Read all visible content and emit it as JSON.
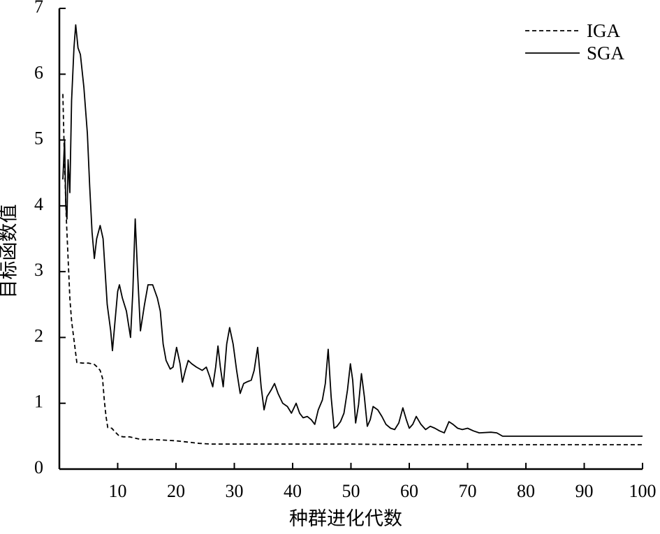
{
  "chart_data": {
    "type": "line",
    "title": "",
    "xlabel": "种群进化代数",
    "ylabel": "目标函数值",
    "xlim": [
      0,
      100
    ],
    "ylim": [
      0,
      7
    ],
    "x_ticks": [
      10,
      20,
      30,
      40,
      50,
      60,
      70,
      80,
      90,
      100
    ],
    "y_ticks": [
      0,
      1,
      2,
      3,
      4,
      5,
      6,
      7
    ],
    "grid": false,
    "legend": "top-right",
    "series": [
      {
        "name": "IGA",
        "style": "dashed",
        "color": "#000000",
        "points": [
          [
            0.6,
            5.7
          ],
          [
            0.9,
            4.6
          ],
          [
            1.2,
            3.8
          ],
          [
            1.5,
            3.2
          ],
          [
            1.8,
            2.6
          ],
          [
            2.1,
            2.25
          ],
          [
            2.6,
            1.9
          ],
          [
            3,
            1.62
          ],
          [
            4,
            1.61
          ],
          [
            5,
            1.61
          ],
          [
            6,
            1.59
          ],
          [
            6.5,
            1.55
          ],
          [
            7,
            1.5
          ],
          [
            7.4,
            1.38
          ],
          [
            7.7,
            1.05
          ],
          [
            8,
            0.8
          ],
          [
            8.3,
            0.63
          ],
          [
            9,
            0.62
          ],
          [
            9.5,
            0.57
          ],
          [
            10.3,
            0.5
          ],
          [
            11,
            0.49
          ],
          [
            12,
            0.49
          ],
          [
            13,
            0.47
          ],
          [
            14,
            0.45
          ],
          [
            16,
            0.45
          ],
          [
            18,
            0.44
          ],
          [
            20,
            0.43
          ],
          [
            22,
            0.41
          ],
          [
            24,
            0.39
          ],
          [
            26,
            0.38
          ],
          [
            30,
            0.38
          ],
          [
            40,
            0.38
          ],
          [
            50,
            0.38
          ],
          [
            60,
            0.37
          ],
          [
            70,
            0.37
          ],
          [
            80,
            0.37
          ],
          [
            90,
            0.37
          ],
          [
            100,
            0.37
          ]
        ]
      },
      {
        "name": "SGA",
        "style": "solid",
        "color": "#000000",
        "points": [
          [
            0.6,
            4.4
          ],
          [
            0.9,
            5.0
          ],
          [
            1.1,
            4.0
          ],
          [
            1.3,
            3.8
          ],
          [
            1.5,
            4.7
          ],
          [
            1.8,
            4.2
          ],
          [
            2.1,
            5.6
          ],
          [
            2.5,
            6.4
          ],
          [
            2.8,
            6.75
          ],
          [
            3.2,
            6.4
          ],
          [
            3.6,
            6.3
          ],
          [
            4.2,
            5.8
          ],
          [
            4.8,
            5.1
          ],
          [
            5.2,
            4.3
          ],
          [
            5.6,
            3.6
          ],
          [
            6,
            3.2
          ],
          [
            6.4,
            3.5
          ],
          [
            7,
            3.7
          ],
          [
            7.5,
            3.5
          ],
          [
            8.2,
            2.5
          ],
          [
            8.8,
            2.1
          ],
          [
            9.1,
            1.8
          ],
          [
            9.5,
            2.2
          ],
          [
            10,
            2.7
          ],
          [
            10.3,
            2.8
          ],
          [
            10.8,
            2.6
          ],
          [
            11.5,
            2.4
          ],
          [
            12.2,
            2.0
          ],
          [
            12.6,
            2.7
          ],
          [
            13,
            3.8
          ],
          [
            13.4,
            3.0
          ],
          [
            13.9,
            2.1
          ],
          [
            14.6,
            2.5
          ],
          [
            15.2,
            2.8
          ],
          [
            16,
            2.8
          ],
          [
            16.8,
            2.6
          ],
          [
            17.3,
            2.4
          ],
          [
            17.8,
            1.9
          ],
          [
            18.3,
            1.65
          ],
          [
            19,
            1.52
          ],
          [
            19.5,
            1.55
          ],
          [
            20.1,
            1.85
          ],
          [
            20.7,
            1.6
          ],
          [
            21.1,
            1.32
          ],
          [
            21.6,
            1.5
          ],
          [
            22.1,
            1.65
          ],
          [
            22.7,
            1.6
          ],
          [
            23.5,
            1.55
          ],
          [
            24.5,
            1.5
          ],
          [
            25.2,
            1.55
          ],
          [
            25.8,
            1.4
          ],
          [
            26.3,
            1.25
          ],
          [
            26.8,
            1.55
          ],
          [
            27.2,
            1.87
          ],
          [
            27.6,
            1.55
          ],
          [
            28.1,
            1.25
          ],
          [
            28.7,
            1.9
          ],
          [
            29.2,
            2.15
          ],
          [
            29.8,
            1.9
          ],
          [
            30.4,
            1.5
          ],
          [
            31,
            1.15
          ],
          [
            31.6,
            1.3
          ],
          [
            32.3,
            1.33
          ],
          [
            32.9,
            1.35
          ],
          [
            33.4,
            1.5
          ],
          [
            34,
            1.85
          ],
          [
            34.6,
            1.25
          ],
          [
            35.1,
            0.9
          ],
          [
            35.6,
            1.1
          ],
          [
            36.3,
            1.2
          ],
          [
            36.9,
            1.3
          ],
          [
            37.5,
            1.15
          ],
          [
            38.3,
            1.0
          ],
          [
            39.1,
            0.95
          ],
          [
            39.8,
            0.85
          ],
          [
            40.6,
            1.0
          ],
          [
            41.2,
            0.85
          ],
          [
            41.8,
            0.78
          ],
          [
            42.5,
            0.8
          ],
          [
            43.2,
            0.75
          ],
          [
            43.8,
            0.68
          ],
          [
            44.4,
            0.9
          ],
          [
            45.1,
            1.05
          ],
          [
            45.6,
            1.3
          ],
          [
            46.1,
            1.82
          ],
          [
            46.6,
            1.1
          ],
          [
            47.1,
            0.62
          ],
          [
            47.6,
            0.65
          ],
          [
            48.2,
            0.72
          ],
          [
            48.8,
            0.85
          ],
          [
            49.4,
            1.2
          ],
          [
            49.9,
            1.6
          ],
          [
            50.3,
            1.35
          ],
          [
            50.8,
            0.7
          ],
          [
            51.3,
            0.98
          ],
          [
            51.8,
            1.45
          ],
          [
            52.3,
            1.1
          ],
          [
            52.8,
            0.65
          ],
          [
            53.3,
            0.75
          ],
          [
            53.8,
            0.95
          ],
          [
            54.6,
            0.9
          ],
          [
            55.3,
            0.8
          ],
          [
            56,
            0.68
          ],
          [
            56.8,
            0.62
          ],
          [
            57.5,
            0.6
          ],
          [
            58.2,
            0.7
          ],
          [
            58.9,
            0.93
          ],
          [
            59.5,
            0.75
          ],
          [
            60,
            0.62
          ],
          [
            60.6,
            0.68
          ],
          [
            61.2,
            0.8
          ],
          [
            62,
            0.68
          ],
          [
            62.8,
            0.6
          ],
          [
            63.6,
            0.65
          ],
          [
            64.4,
            0.62
          ],
          [
            65.2,
            0.58
          ],
          [
            66,
            0.55
          ],
          [
            66.8,
            0.72
          ],
          [
            67.5,
            0.68
          ],
          [
            68.3,
            0.62
          ],
          [
            69.1,
            0.6
          ],
          [
            70,
            0.62
          ],
          [
            71,
            0.58
          ],
          [
            72,
            0.55
          ],
          [
            74,
            0.56
          ],
          [
            75,
            0.55
          ],
          [
            76,
            0.5
          ],
          [
            80,
            0.5
          ],
          [
            85,
            0.5
          ],
          [
            90,
            0.5
          ],
          [
            95,
            0.5
          ],
          [
            100,
            0.5
          ]
        ]
      }
    ]
  }
}
